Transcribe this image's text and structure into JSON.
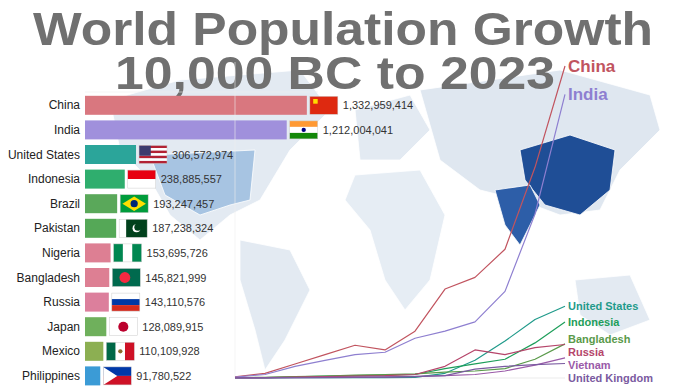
{
  "chart_data": [
    {
      "type": "bar",
      "orientation": "horizontal",
      "title": "World Population Growth",
      "subtitle": "10,000 BC to 2023",
      "categories": [
        "China",
        "India",
        "United States",
        "Indonesia",
        "Brazil",
        "Pakistan",
        "Nigeria",
        "Bangladesh",
        "Russia",
        "Japan",
        "Mexico",
        "Philippines"
      ],
      "values": [
        1332959414,
        1212004041,
        306572974,
        238885557,
        193247457,
        187238324,
        153695726,
        145821999,
        143110576,
        128089915,
        110109928,
        91780522
      ],
      "value_labels": [
        "1,332,959,414",
        "1,212,004,041",
        "306,572,974",
        "238,885,557",
        "193,247,457",
        "187,238,324",
        "153,695,726",
        "145,821,999",
        "143,110,576",
        "128,089,915",
        "110,109,928",
        "91,780,522"
      ],
      "colors": [
        "#d9777f",
        "#a090dc",
        "#2ba59a",
        "#2fae6e",
        "#5aa85a",
        "#55a857",
        "#dd7f93",
        "#dd7f93",
        "#dc7f9c",
        "#6fb05c",
        "#8caf52",
        "#3b9bd6"
      ],
      "xlim": [
        0,
        1400000000
      ],
      "data_labels": true,
      "tick_labels": "y"
    },
    {
      "type": "line",
      "categories": [
        null,
        null,
        null,
        null,
        null,
        null,
        null,
        null,
        null,
        null,
        null,
        null
      ],
      "series": [
        {
          "name": "China",
          "color": "#c1545f",
          "values": [
            5000000,
            20000000,
            60000000,
            100000000,
            140000000,
            120000000,
            200000000,
            380000000,
            430000000,
            550000000,
            900000000,
            1332959414
          ]
        },
        {
          "name": "India",
          "color": "#8e7fd0",
          "values": [
            4000000,
            15000000,
            50000000,
            75000000,
            100000000,
            110000000,
            170000000,
            200000000,
            240000000,
            370000000,
            700000000,
            1212004041
          ]
        },
        {
          "name": "United States",
          "color": "#1f9a8a",
          "values": [
            500000,
            600000,
            1000000,
            1000000,
            2000000,
            2000000,
            3000000,
            20000000,
            76000000,
            158000000,
            250000000,
            306572974
          ]
        },
        {
          "name": "Indonesia",
          "color": "#1e9e5a",
          "values": [
            1000000,
            2000000,
            5000000,
            8000000,
            10000000,
            12000000,
            15000000,
            40000000,
            60000000,
            80000000,
            150000000,
            238885557
          ]
        },
        {
          "name": "Bangladesh",
          "color": "#5a9a4a",
          "values": [
            1000000,
            3000000,
            6000000,
            8000000,
            12000000,
            14000000,
            18000000,
            25000000,
            30000000,
            40000000,
            80000000,
            145821999
          ]
        },
        {
          "name": "Russia",
          "color": "#b5456a",
          "values": [
            1000000,
            2000000,
            4000000,
            6000000,
            8000000,
            10000000,
            15000000,
            50000000,
            120000000,
            100000000,
            130000000,
            143110576
          ]
        },
        {
          "name": "Vietnam",
          "color": "#9a5aa8",
          "values": [
            500000,
            1000000,
            2000000,
            3000000,
            4000000,
            5000000,
            7000000,
            10000000,
            15000000,
            30000000,
            55000000,
            86000000
          ]
        },
        {
          "name": "United Kingdom",
          "color": "#7a5aa0",
          "values": [
            300000,
            500000,
            1000000,
            1500000,
            3000000,
            4000000,
            6000000,
            10000000,
            38000000,
            50000000,
            57000000,
            62000000
          ]
        }
      ],
      "ylim": [
        0,
        1350000000
      ],
      "tick_labels": false
    }
  ]
}
